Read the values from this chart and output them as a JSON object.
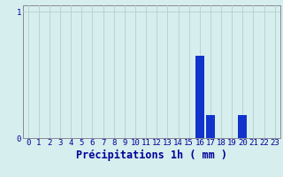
{
  "hours": [
    0,
    1,
    2,
    3,
    4,
    5,
    6,
    7,
    8,
    9,
    10,
    11,
    12,
    13,
    14,
    15,
    16,
    17,
    18,
    19,
    20,
    21,
    22,
    23
  ],
  "values": [
    0,
    0,
    0,
    0,
    0,
    0,
    0,
    0,
    0,
    0,
    0,
    0,
    0,
    0,
    0,
    0,
    0.65,
    0.18,
    0,
    0,
    0.18,
    0,
    0,
    0
  ],
  "bar_color": "#1133cc",
  "bg_color": "#d6eeed",
  "grid_color": "#b8cece",
  "axis_color": "#888899",
  "text_color": "#000099",
  "xlabel": "Précipitations 1h ( mm )",
  "ylim": [
    0,
    1.05
  ],
  "yticks": [
    0,
    1
  ],
  "ytick_labels": [
    "0",
    "1"
  ],
  "xlim": [
    -0.5,
    23.5
  ],
  "xlabel_fontsize": 8.5,
  "tick_fontsize": 6.5
}
